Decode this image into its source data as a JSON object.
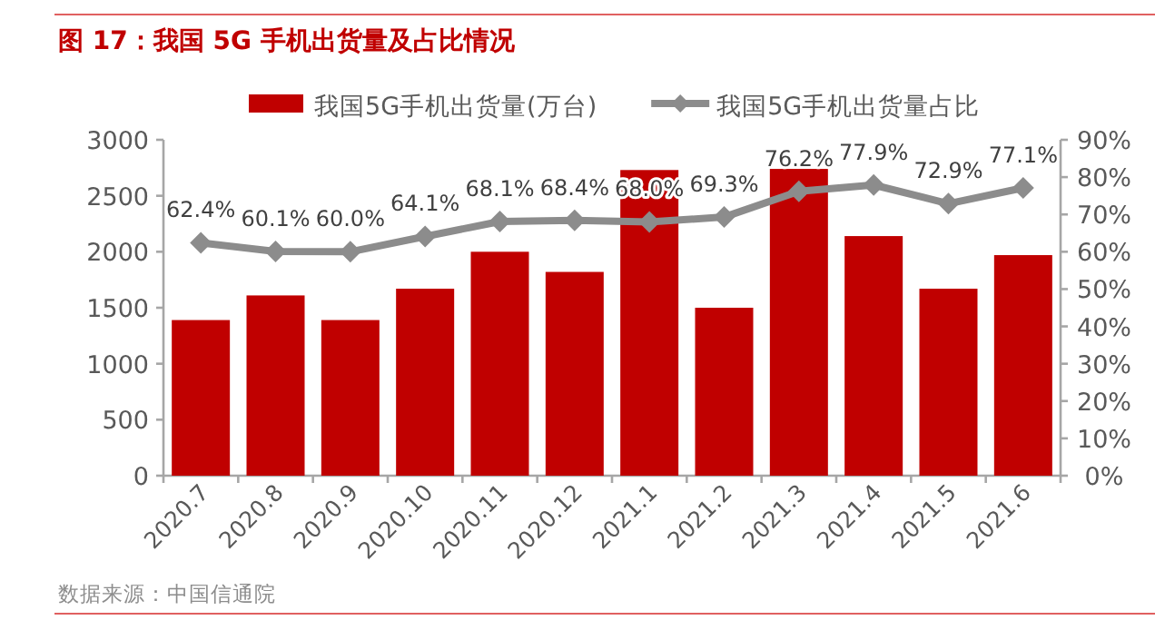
{
  "chart_data": {
    "type": "bar",
    "title": "图 17：我国 5G 手机出货量及占比情况",
    "categories": [
      "2020.7",
      "2020.8",
      "2020.9",
      "2020.10",
      "2020.11",
      "2020.12",
      "2021.1",
      "2021.2",
      "2021.3",
      "2021.4",
      "2021.5",
      "2021.6"
    ],
    "series": [
      {
        "name": "我国5G手机出货量(万台)",
        "color": "#c00000",
        "values": [
          1390,
          1610,
          1390,
          1670,
          2000,
          1820,
          2730,
          1500,
          2740,
          2140,
          1670,
          1970
        ]
      },
      {
        "name": "我国5G手机出货量占比",
        "type": "line",
        "axis": "y2",
        "color": "#8c8c8c",
        "marker": "diamond",
        "value_labels": [
          "62.4%",
          "60.1%",
          "60.0%",
          "64.1%",
          "68.1%",
          "68.4%",
          "68.0%",
          "69.3%",
          "76.2%",
          "77.9%",
          "72.9%",
          "77.1%"
        ],
        "values": [
          62.4,
          60.1,
          60.0,
          64.1,
          68.1,
          68.4,
          68.0,
          69.3,
          76.2,
          77.9,
          72.9,
          77.1
        ]
      }
    ],
    "ylim": [
      0,
      3000
    ],
    "yticks": [
      0,
      500,
      1000,
      1500,
      2000,
      2500,
      3000
    ],
    "y2lim": [
      0,
      90
    ],
    "y2ticks": [
      {
        "value": 0,
        "label": "0%"
      },
      {
        "value": 10,
        "label": "10%"
      },
      {
        "value": 20,
        "label": "20%"
      },
      {
        "value": 30,
        "label": "30%"
      },
      {
        "value": 40,
        "label": "40%"
      },
      {
        "value": 50,
        "label": "50%"
      },
      {
        "value": 60,
        "label": "60%"
      },
      {
        "value": 70,
        "label": "70%"
      },
      {
        "value": 80,
        "label": "80%"
      },
      {
        "value": 90,
        "label": "90%"
      }
    ],
    "legend": "top",
    "grid": false,
    "annotations": [
      "数据来源：中国信通院"
    ]
  }
}
